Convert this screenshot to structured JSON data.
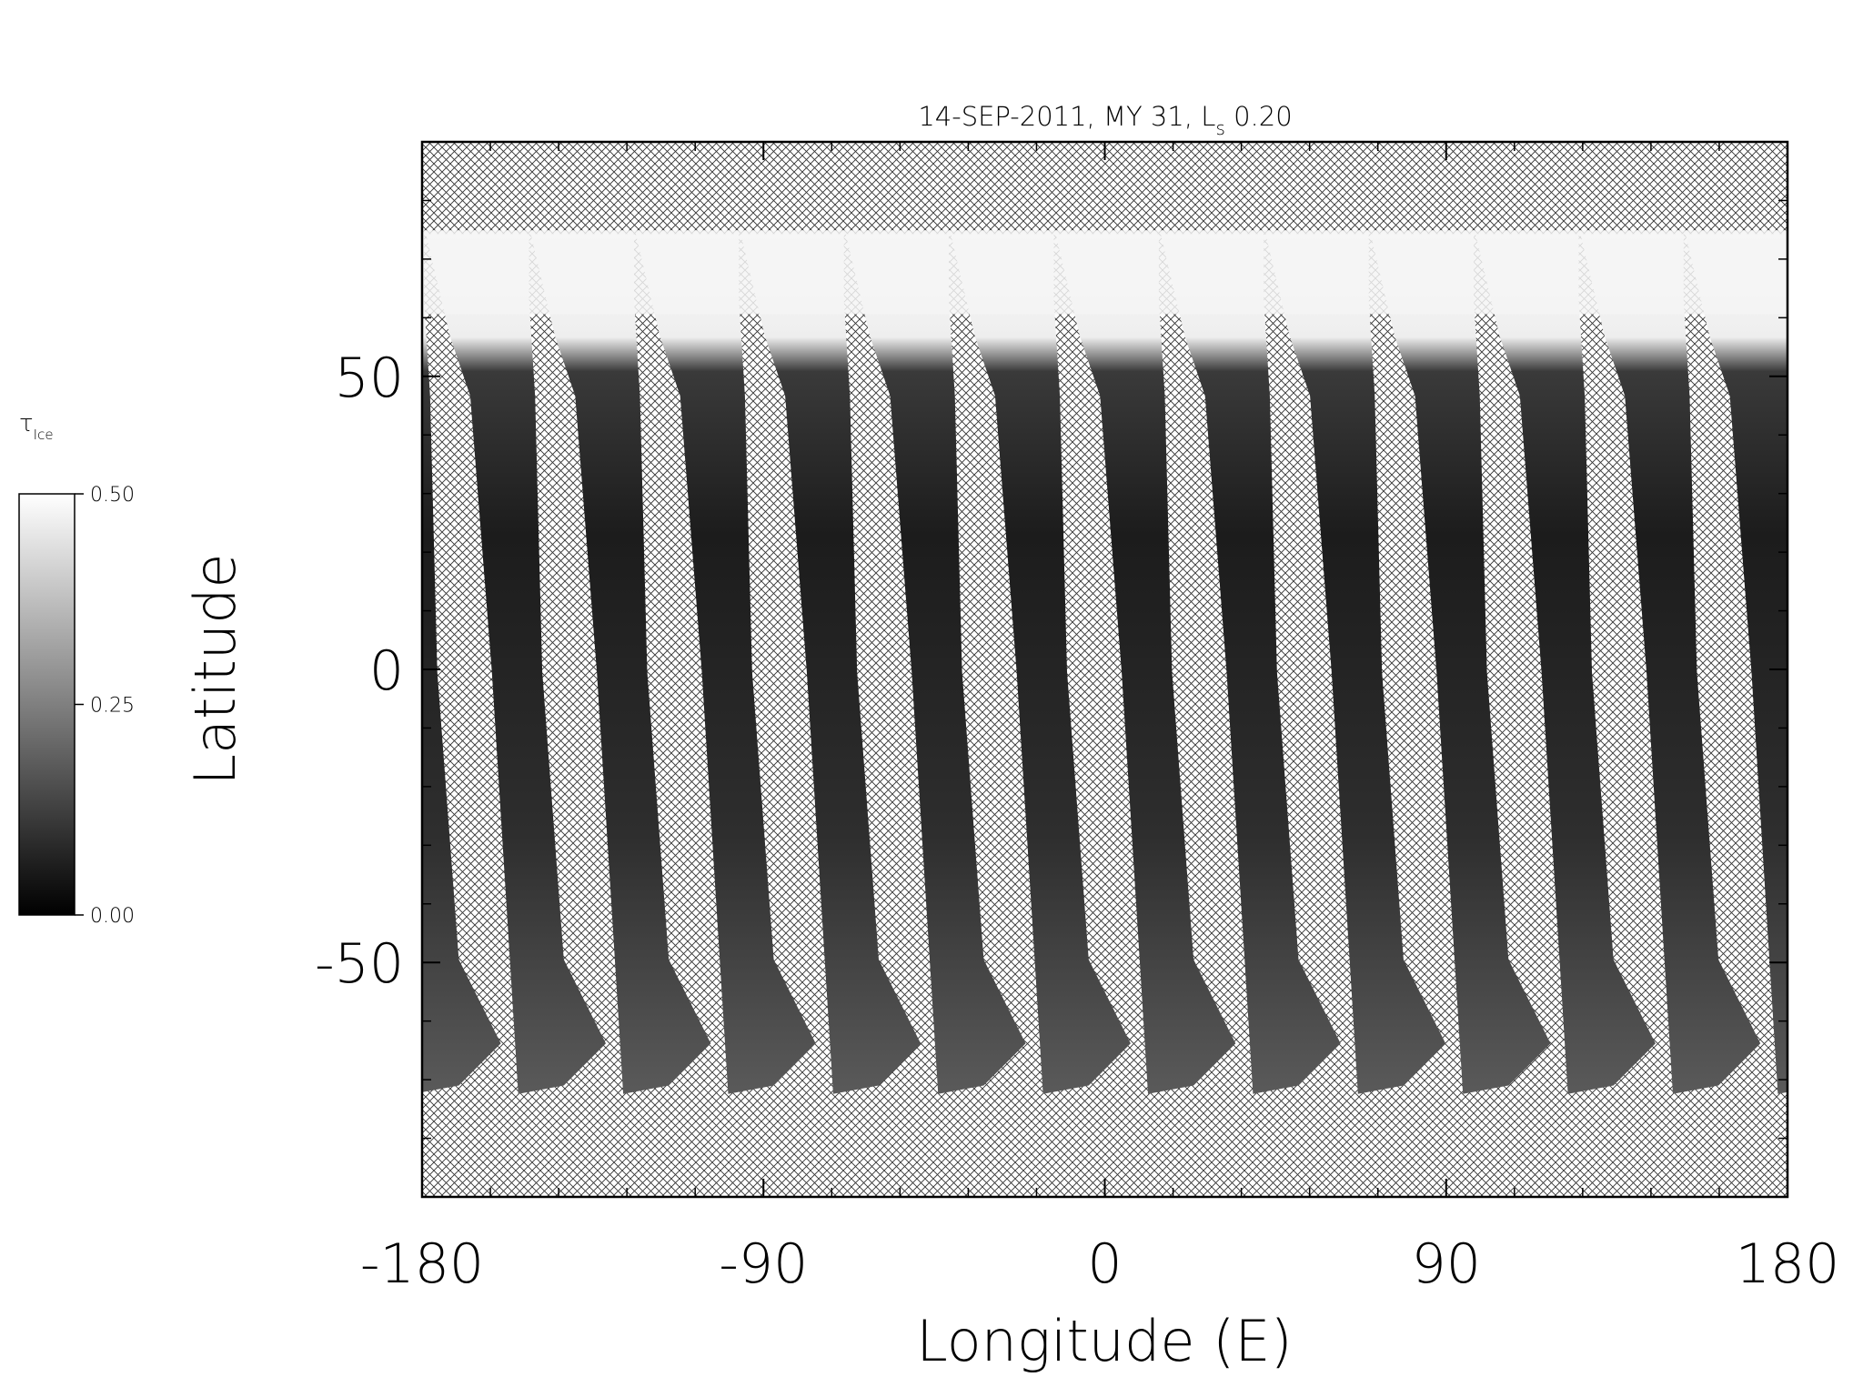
{
  "chart_data": {
    "type": "map",
    "title_parts": [
      "14-SEP-2011, MY 31,  L",
      "s",
      " 0.20"
    ],
    "xlabel": "Longitude (E)",
    "ylabel": "Latitude",
    "xlim": [
      -180,
      180
    ],
    "xticks": [
      -180,
      -90,
      0,
      90,
      180
    ],
    "xminorticks": [
      -162,
      -144,
      -126,
      -108,
      -72,
      -54,
      -36,
      -18,
      18,
      36,
      54,
      72,
      108,
      126,
      144,
      162
    ],
    "ylim": [
      -90,
      90
    ],
    "yticks": [
      -50,
      0,
      50
    ],
    "yminorticks": [
      -80,
      -70,
      -60,
      -40,
      -30,
      -20,
      -10,
      10,
      20,
      30,
      40,
      60,
      70,
      80
    ],
    "colorbar": {
      "label": "τ",
      "label_sub": "Ice",
      "lim": [
        0,
        0.5
      ],
      "ticks": [
        {
          "value": 0,
          "label": "0.00"
        },
        {
          "value": 0.25,
          "label": "0.25"
        },
        {
          "value": 0.5,
          "label": "0.50"
        }
      ],
      "colors": [
        "#000000",
        "#ffffff"
      ]
    }
  }
}
